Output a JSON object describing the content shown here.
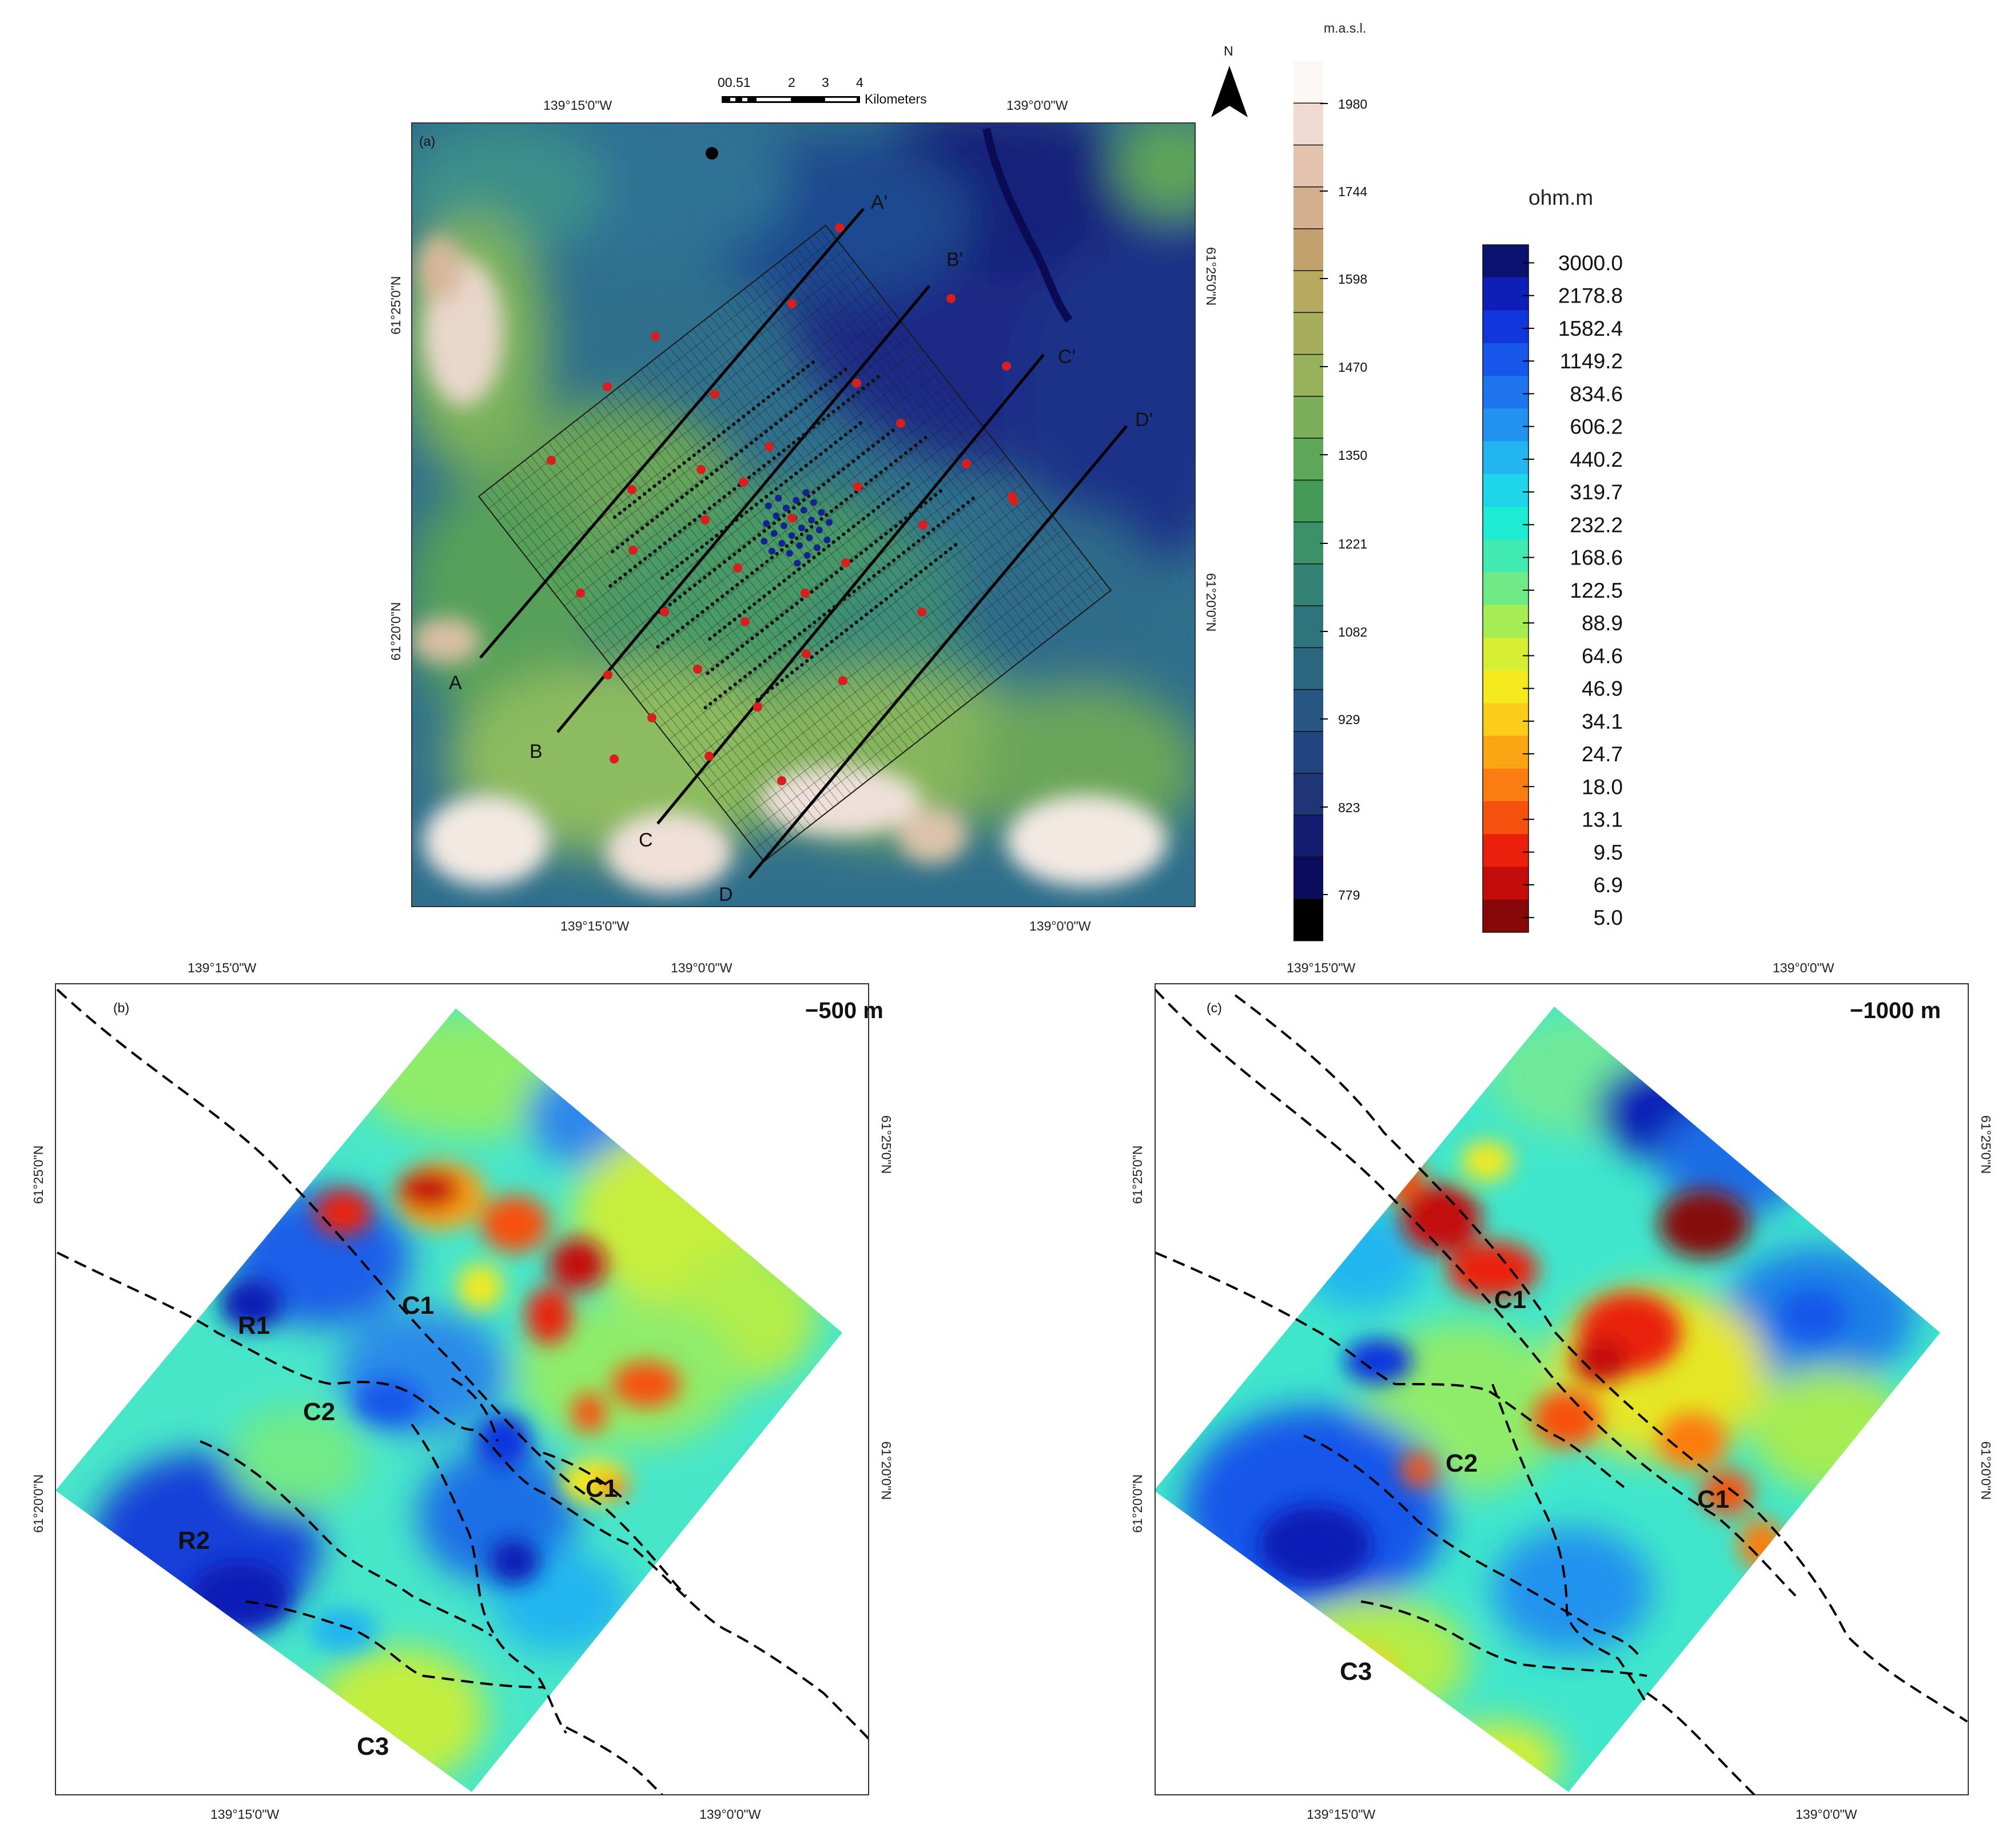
{
  "panel_a": {
    "label": "(a)",
    "top_coords": [
      "139°15'0\"W",
      "139°0'0\"W"
    ],
    "bottom_coords": [
      "139°15'0\"W",
      "139°0'0\"W"
    ],
    "left_coords": [
      "61°25'0\"N",
      "61°20'0\"N"
    ],
    "right_coords": [
      "61°25'0\"N",
      "61°20'0\"N"
    ],
    "scale_numbers": [
      "00.51",
      "2",
      "3",
      "4"
    ],
    "scale_unit": "Kilometers",
    "north_label": "N",
    "profile_labels": {
      "start": [
        "A",
        "B",
        "C",
        "D"
      ],
      "end": [
        "A'",
        "B'",
        "C'",
        "D'"
      ]
    }
  },
  "elevation_legend": {
    "unit": "m.a.s.l.",
    "ticks": [
      "1980",
      "1744",
      "1598",
      "1470",
      "1350",
      "1221",
      "1082",
      "929",
      "823",
      "779"
    ],
    "colors": [
      "#fbf8f5",
      "#f0dad2",
      "#e3c3ae",
      "#d2b08f",
      "#c2a16e",
      "#b7a95f",
      "#a6ae5d",
      "#98b25c",
      "#7bae5a",
      "#5ea658",
      "#469a58",
      "#3d9168",
      "#338274",
      "#2f747c",
      "#2b6681",
      "#285683",
      "#22457f",
      "#1f3575",
      "#141d6f",
      "#0c0c5e",
      "#000000"
    ]
  },
  "resistivity_legend": {
    "unit": "ohm.m",
    "ticks": [
      "3000.0",
      "2178.8",
      "1582.4",
      "1149.2",
      "834.6",
      "606.2",
      "440.2",
      "319.7",
      "232.2",
      "168.6",
      "122.5",
      "88.9",
      "64.6",
      "46.9",
      "34.1",
      "24.7",
      "18.0",
      "13.1",
      "9.5",
      "6.9",
      "5.0"
    ],
    "colors": [
      "#0a1270",
      "#0d1fb6",
      "#1135dd",
      "#1656ea",
      "#1d74ed",
      "#2192ef",
      "#22b5ef",
      "#1fd5ec",
      "#1eebd4",
      "#40eab1",
      "#70ea86",
      "#a6ec53",
      "#d6ef33",
      "#f4ea1e",
      "#fbcd18",
      "#fba514",
      "#fb7d11",
      "#f6510e",
      "#ea200c",
      "#c40c0a",
      "#860808"
    ]
  },
  "panel_b": {
    "label": "(b)",
    "depth": "−500 m",
    "top_coords": [
      "139°15'0\"W",
      "139°0'0\"W"
    ],
    "bottom_coords": [
      "139°15'0\"W",
      "139°0'0\"W"
    ],
    "left_coords": [
      "61°25'0\"N",
      "61°20'0\"N"
    ],
    "right_coords": [
      "61°25'0\"N",
      "61°20'0\"N"
    ],
    "features": [
      "C1",
      "R1",
      "C2",
      "C1",
      "R2",
      "C3"
    ]
  },
  "panel_c": {
    "label": "(c)",
    "depth": "−1000 m",
    "top_coords": [
      "139°15'0\"W",
      "139°0'0\"W"
    ],
    "bottom_coords": [
      "139°15'0\"W",
      "139°0'0\"W"
    ],
    "left_coords": [
      "61°25'0\"N",
      "61°20'0\"N"
    ],
    "right_coords": [
      "61°25'0\"N",
      "61°20'0\"N"
    ],
    "features": [
      "C1",
      "C2",
      "C1",
      "C3"
    ]
  }
}
